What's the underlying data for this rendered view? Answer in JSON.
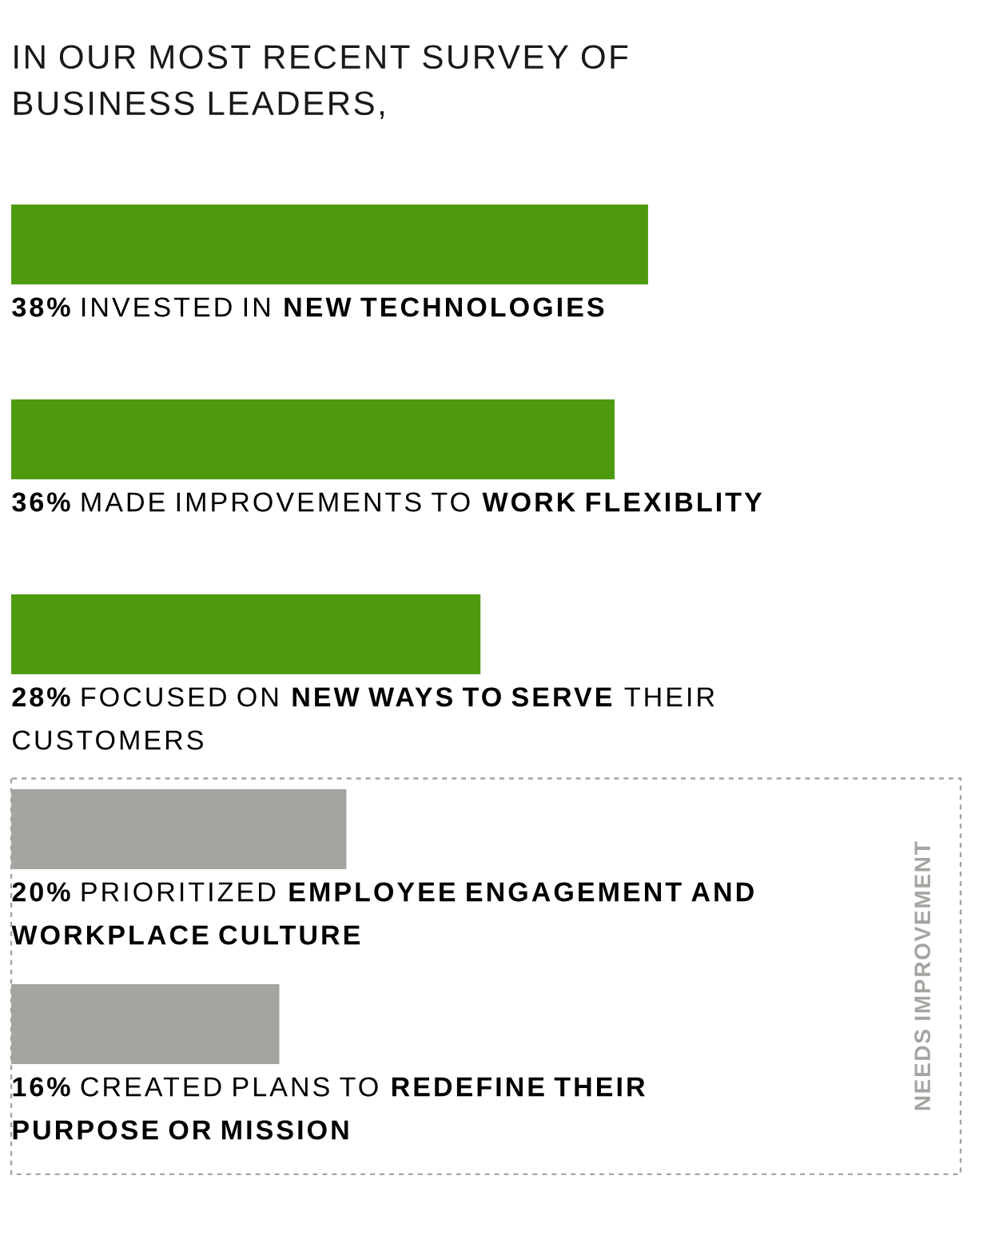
{
  "chart_data": {
    "type": "bar",
    "orientation": "horizontal",
    "title": "IN OUR MOST RECENT SURVEY OF BUSINESS LEADERS,",
    "categories": [
      "INVESTED IN **NEW TECHNOLOGIES**",
      "MADE IMPROVEMENTS TO **WORK FLEXIBLITY**",
      "FOCUSED ON **NEW WAYS TO SERVE** THEIR CUSTOMERS",
      "PRIORITIZED **EMPLOYEE ENGAGEMENT AND WORKPLACE CULTURE**",
      "CREATED PLANS TO **REDEFINE THEIR PURPOSE OR MISSION**"
    ],
    "values": [
      38,
      36,
      28,
      20,
      16
    ],
    "value_labels": [
      "38%",
      "36%",
      "28%",
      "20%",
      "16%"
    ],
    "colors": [
      "#4e9a0f",
      "#4e9a0f",
      "#4e9a0f",
      "#a4a4a0",
      "#a4a4a0"
    ],
    "tick_labels": false,
    "annotations": [
      "NEEDS IMPROVEMENT"
    ]
  }
}
